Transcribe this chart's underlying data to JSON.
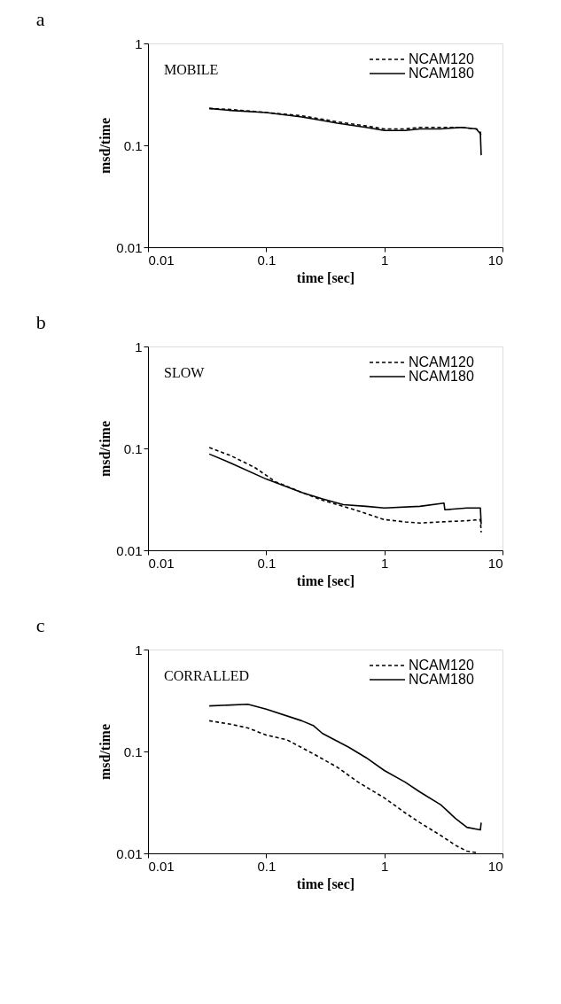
{
  "chart_data": [
    {
      "type": "line",
      "title": "a",
      "xlabel": "time [sec]",
      "ylabel": "msd/time",
      "annotations": [
        "MOBILE"
      ],
      "log": "xy",
      "grid": false,
      "legend": "top right",
      "xlim": [
        0.01,
        10
      ],
      "ylim": [
        0.01,
        1
      ],
      "xticks": [
        0.01,
        0.1,
        1,
        10
      ],
      "yticks": [
        0.01,
        0.1,
        1
      ],
      "series": [
        {
          "name": "NCAM120",
          "color": "#000000",
          "line_style": "dashed",
          "x": [
            0.033,
            0.05,
            0.1,
            0.2,
            0.3,
            0.4,
            0.7,
            1,
            1.5,
            2,
            3,
            4.5,
            6,
            6.5,
            6.6
          ],
          "values": [
            0.23,
            0.225,
            0.21,
            0.195,
            0.18,
            0.17,
            0.155,
            0.145,
            0.145,
            0.15,
            0.15,
            0.15,
            0.145,
            0.135,
            0.12
          ]
        },
        {
          "name": "NCAM180",
          "color": "#000000",
          "line_style": "solid",
          "x": [
            0.033,
            0.05,
            0.1,
            0.2,
            0.3,
            0.4,
            0.7,
            1,
            1.5,
            2,
            3,
            4.5,
            6,
            6.5,
            6.6
          ],
          "values": [
            0.23,
            0.22,
            0.21,
            0.19,
            0.175,
            0.165,
            0.15,
            0.14,
            0.14,
            0.145,
            0.145,
            0.15,
            0.145,
            0.13,
            0.08
          ]
        }
      ]
    },
    {
      "type": "line",
      "title": "b",
      "xlabel": "time [sec]",
      "ylabel": "msd/time",
      "annotations": [
        "SLOW"
      ],
      "log": "xy",
      "grid": false,
      "legend": "top right",
      "xlim": [
        0.01,
        10
      ],
      "ylim": [
        0.01,
        1
      ],
      "xticks": [
        0.01,
        0.1,
        1,
        10
      ],
      "yticks": [
        0.01,
        0.1,
        1
      ],
      "series": [
        {
          "name": "NCAM120",
          "color": "#000000",
          "line_style": "dashed",
          "x": [
            0.033,
            0.05,
            0.08,
            0.12,
            0.2,
            0.3,
            0.5,
            0.7,
            1,
            1.5,
            2,
            3,
            5,
            6.5,
            6.6
          ],
          "values": [
            0.102,
            0.085,
            0.065,
            0.047,
            0.037,
            0.031,
            0.026,
            0.023,
            0.02,
            0.019,
            0.0185,
            0.019,
            0.0195,
            0.02,
            0.015
          ]
        },
        {
          "name": "NCAM180",
          "color": "#000000",
          "line_style": "solid",
          "x": [
            0.033,
            0.05,
            0.1,
            0.2,
            0.3,
            0.45,
            0.7,
            1,
            2,
            3.2,
            3.25,
            5,
            6.5,
            6.6
          ],
          "values": [
            0.088,
            0.072,
            0.05,
            0.037,
            0.032,
            0.028,
            0.027,
            0.026,
            0.027,
            0.029,
            0.025,
            0.026,
            0.026,
            0.018
          ]
        }
      ]
    },
    {
      "type": "line",
      "title": "c",
      "xlabel": "time [sec]",
      "ylabel": "msd/time",
      "annotations": [
        "CORRALLED"
      ],
      "log": "xy",
      "grid": false,
      "legend": "top right",
      "xlim": [
        0.01,
        10
      ],
      "ylim": [
        0.01,
        1
      ],
      "xticks": [
        0.01,
        0.1,
        1,
        10
      ],
      "yticks": [
        0.01,
        0.1,
        1
      ],
      "series": [
        {
          "name": "NCAM120",
          "color": "#000000",
          "line_style": "dashed",
          "x": [
            0.033,
            0.05,
            0.07,
            0.1,
            0.15,
            0.25,
            0.4,
            0.6,
            1,
            1.5,
            2,
            3,
            4,
            5,
            6
          ],
          "values": [
            0.2,
            0.185,
            0.17,
            0.145,
            0.13,
            0.095,
            0.07,
            0.05,
            0.035,
            0.025,
            0.02,
            0.015,
            0.012,
            0.0105,
            0.0102
          ]
        },
        {
          "name": "NCAM180",
          "color": "#000000",
          "line_style": "solid",
          "x": [
            0.033,
            0.07,
            0.1,
            0.2,
            0.25,
            0.3,
            0.5,
            0.7,
            1,
            1.5,
            2,
            3,
            4,
            5,
            6.5,
            6.6
          ],
          "values": [
            0.28,
            0.29,
            0.26,
            0.2,
            0.18,
            0.15,
            0.11,
            0.087,
            0.065,
            0.05,
            0.04,
            0.03,
            0.022,
            0.018,
            0.017,
            0.02
          ]
        }
      ]
    }
  ]
}
